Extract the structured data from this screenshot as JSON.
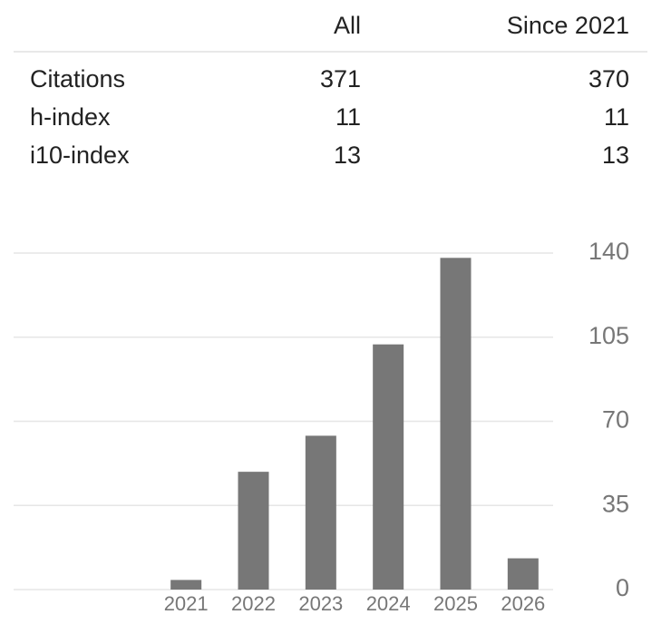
{
  "table": {
    "header": [
      "All",
      "Since 2021"
    ],
    "rows": [
      [
        "Citations",
        371,
        370
      ],
      [
        "h-index",
        11,
        11
      ],
      [
        "i10-index",
        13,
        13
      ]
    ]
  },
  "chart_data": {
    "type": "bar",
    "categories": [
      "2021",
      "2022",
      "2023",
      "2024",
      "2025",
      "2026"
    ],
    "values": [
      4,
      49,
      64,
      102,
      138,
      13
    ],
    "color": "#777777",
    "ylim": [
      0,
      140
    ],
    "yticks": [
      0,
      35,
      70,
      105,
      140
    ],
    "grid": true
  }
}
